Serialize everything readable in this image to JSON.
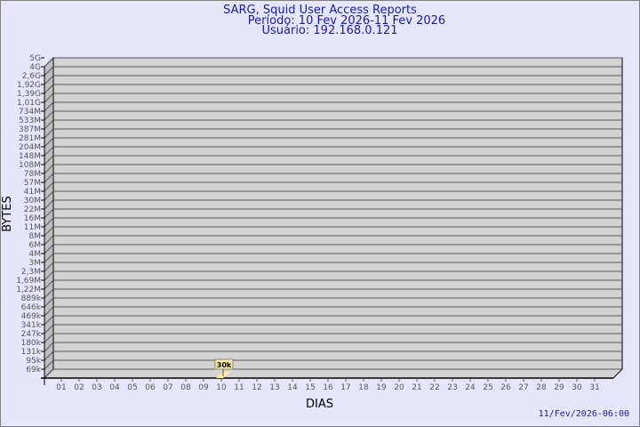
{
  "chart_data": {
    "type": "bar",
    "title": "SARG, Squid User Access Reports",
    "subtitle_period": "Período: 10 Fev 2026-11 Fev 2026",
    "subtitle_user": "Usuário: 192.168.0.121",
    "xlabel": "DIAS",
    "ylabel": "BYTES",
    "y_scale": "log",
    "y_tick_labels": [
      "5G",
      "4G",
      "2,6G",
      "1,92G",
      "1,39G",
      "1,01G",
      "734M",
      "533M",
      "387M",
      "281M",
      "204M",
      "148M",
      "108M",
      "78M",
      "57M",
      "41M",
      "30M",
      "22M",
      "16M",
      "11M",
      "8M",
      "6M",
      "4M",
      "3M",
      "2,3M",
      "1,69M",
      "1,22M",
      "889k",
      "646k",
      "469k",
      "341k",
      "247k",
      "180k",
      "131k",
      "95k",
      "69k"
    ],
    "categories": [
      "01",
      "02",
      "03",
      "04",
      "05",
      "06",
      "07",
      "08",
      "09",
      "10",
      "11",
      "12",
      "13",
      "14",
      "15",
      "16",
      "17",
      "18",
      "19",
      "20",
      "21",
      "22",
      "23",
      "24",
      "25",
      "26",
      "27",
      "28",
      "29",
      "30",
      "31"
    ],
    "bars": [
      {
        "day": "10",
        "value_label": "30k"
      }
    ],
    "grid": true,
    "colors": {
      "background": "#e6e6fa",
      "wall": "#d3d3d3",
      "bar": "#ffeb99",
      "text": "#1a1aa6"
    }
  },
  "footer": {
    "timestamp": "11/Fev/2026-06:00"
  }
}
